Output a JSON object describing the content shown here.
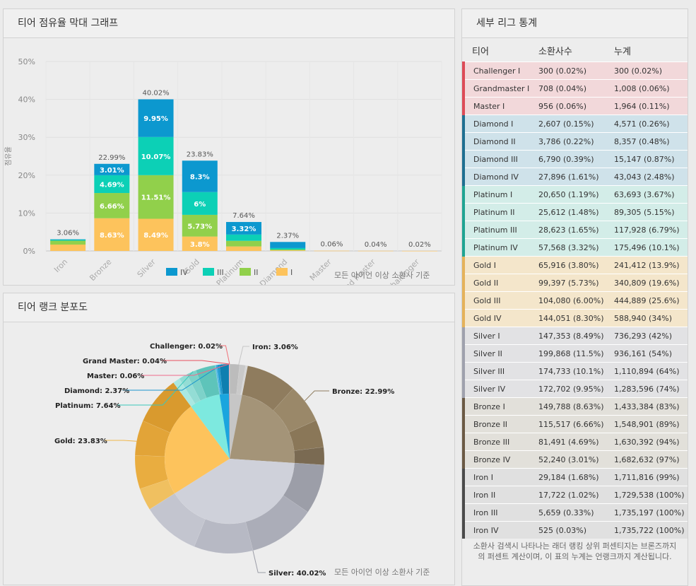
{
  "bar_panel": {
    "title": "티어 점유율 막대 그래프",
    "note": "모든 아이언 이상 소환사 기준"
  },
  "pie_panel": {
    "title": "티어 랭크 분포도",
    "note": "모든 아이언 이상 소환사 기준"
  },
  "stats_panel": {
    "title": "세부 리그 통계",
    "headers": [
      "티어",
      "소환사수",
      "누계"
    ],
    "footer": "소환사 검색시 나타나는 래더 랭킹 상위 퍼센티지는 브론즈까지의 퍼센트 계산이며, 이 표의 누계는 언랭크까지 계산됩니다.",
    "rows": [
      {
        "tier": "Challenger I",
        "count": "300 (0.02%)",
        "cum": "300 (0.02%)",
        "group": "challenger"
      },
      {
        "tier": "Grandmaster I",
        "count": "708 (0.04%)",
        "cum": "1,008 (0.06%)",
        "group": "challenger"
      },
      {
        "tier": "Master I",
        "count": "956 (0.06%)",
        "cum": "1,964 (0.11%)",
        "group": "challenger"
      },
      {
        "tier": "Diamond I",
        "count": "2,607 (0.15%)",
        "cum": "4,571 (0.26%)",
        "group": "diamond"
      },
      {
        "tier": "Diamond II",
        "count": "3,786 (0.22%)",
        "cum": "8,357 (0.48%)",
        "group": "diamond"
      },
      {
        "tier": "Diamond III",
        "count": "6,790 (0.39%)",
        "cum": "15,147 (0.87%)",
        "group": "diamond"
      },
      {
        "tier": "Diamond IV",
        "count": "27,896 (1.61%)",
        "cum": "43,043 (2.48%)",
        "group": "diamond"
      },
      {
        "tier": "Platinum I",
        "count": "20,650 (1.19%)",
        "cum": "63,693 (3.67%)",
        "group": "platinum"
      },
      {
        "tier": "Platinum II",
        "count": "25,612 (1.48%)",
        "cum": "89,305 (5.15%)",
        "group": "platinum"
      },
      {
        "tier": "Platinum III",
        "count": "28,623 (1.65%)",
        "cum": "117,928 (6.79%)",
        "group": "platinum"
      },
      {
        "tier": "Platinum IV",
        "count": "57,568 (3.32%)",
        "cum": "175,496 (10.1%)",
        "group": "platinum"
      },
      {
        "tier": "Gold I",
        "count": "65,916 (3.80%)",
        "cum": "241,412 (13.9%)",
        "group": "gold"
      },
      {
        "tier": "Gold II",
        "count": "99,397 (5.73%)",
        "cum": "340,809 (19.6%)",
        "group": "gold"
      },
      {
        "tier": "Gold III",
        "count": "104,080 (6.00%)",
        "cum": "444,889 (25.6%)",
        "group": "gold"
      },
      {
        "tier": "Gold IV",
        "count": "144,051 (8.30%)",
        "cum": "588,940 (34%)",
        "group": "gold"
      },
      {
        "tier": "Silver I",
        "count": "147,353 (8.49%)",
        "cum": "736,293 (42%)",
        "group": "silver"
      },
      {
        "tier": "Silver II",
        "count": "199,868 (11.5%)",
        "cum": "936,161 (54%)",
        "group": "silver"
      },
      {
        "tier": "Silver III",
        "count": "174,733 (10.1%)",
        "cum": "1,110,894 (64%)",
        "group": "silver"
      },
      {
        "tier": "Silver IV",
        "count": "172,702 (9.95%)",
        "cum": "1,283,596 (74%)",
        "group": "silver"
      },
      {
        "tier": "Bronze I",
        "count": "149,788 (8.63%)",
        "cum": "1,433,384 (83%)",
        "group": "bronze"
      },
      {
        "tier": "Bronze II",
        "count": "115,517 (6.66%)",
        "cum": "1,548,901 (89%)",
        "group": "bronze"
      },
      {
        "tier": "Bronze III",
        "count": "81,491 (4.69%)",
        "cum": "1,630,392 (94%)",
        "group": "bronze"
      },
      {
        "tier": "Bronze IV",
        "count": "52,240 (3.01%)",
        "cum": "1,682,632 (97%)",
        "group": "bronze"
      },
      {
        "tier": "Iron I",
        "count": "29,184 (1.68%)",
        "cum": "1,711,816 (99%)",
        "group": "iron"
      },
      {
        "tier": "Iron II",
        "count": "17,722 (1.02%)",
        "cum": "1,729,538 (100%)",
        "group": "iron"
      },
      {
        "tier": "Iron III",
        "count": "5,659 (0.33%)",
        "cum": "1,735,197 (100%)",
        "group": "iron"
      },
      {
        "tier": "Iron IV",
        "count": "525 (0.03%)",
        "cum": "1,735,722 (100%)",
        "group": "iron"
      }
    ]
  },
  "group_colors": {
    "challenger": {
      "bg": "#f2d8da",
      "bar": "#dd4b57"
    },
    "diamond": {
      "bg": "#cfe2ea",
      "bar": "#1f6f91"
    },
    "platinum": {
      "bg": "#d3ede8",
      "bar": "#1fa492"
    },
    "gold": {
      "bg": "#f4e6cb",
      "bar": "#e5b25a"
    },
    "silver": {
      "bg": "#e2e2e4",
      "bar": "#9fa1ad"
    },
    "bronze": {
      "bg": "#e2e0da",
      "bar": "#6b5a44"
    },
    "iron": {
      "bg": "#e0e0e0",
      "bar": "#4a4a4a"
    }
  },
  "chart_data": [
    {
      "type": "bar",
      "stacked": true,
      "ylabel": "점유율",
      "ylim": [
        0,
        50
      ],
      "yticks": [
        "0%",
        "10%",
        "20%",
        "30%",
        "40%",
        "50%"
      ],
      "categories": [
        "Iron",
        "Bronze",
        "Silver",
        "Gold",
        "Platinum",
        "Diamond",
        "Master",
        "Grand Master",
        "Challenger"
      ],
      "totals": [
        "3.06%",
        "22.99%",
        "40.02%",
        "23.83%",
        "7.64%",
        "2.37%",
        "0.06%",
        "0.04%",
        "0.02%"
      ],
      "series": [
        {
          "name": "I",
          "color": "#fdc35c",
          "values": [
            1.68,
            8.63,
            8.49,
            3.8,
            1.19,
            0.15,
            0.06,
            0.04,
            0.02
          ],
          "labels": [
            "",
            "8.63%",
            "8.49%",
            "3.8%",
            "",
            "",
            "",
            "",
            ""
          ]
        },
        {
          "name": "II",
          "color": "#91d04b",
          "values": [
            1.02,
            6.66,
            11.51,
            5.73,
            1.48,
            0.22,
            0,
            0,
            0
          ],
          "labels": [
            "",
            "6.66%",
            "11.51%",
            "5.73%",
            "",
            "",
            "",
            "",
            ""
          ]
        },
        {
          "name": "III",
          "color": "#0cd0b6",
          "values": [
            0.33,
            4.69,
            10.07,
            6.0,
            1.65,
            0.39,
            0,
            0,
            0
          ],
          "labels": [
            "",
            "4.69%",
            "10.07%",
            "6%",
            "",
            "",
            "",
            "",
            ""
          ]
        },
        {
          "name": "IV",
          "color": "#0c98cf",
          "values": [
            0.03,
            3.01,
            9.95,
            8.3,
            3.32,
            1.61,
            0,
            0,
            0
          ],
          "labels": [
            "",
            "3.01%",
            "9.95%",
            "8.3%",
            "3.32%",
            "",
            "",
            "",
            ""
          ]
        }
      ],
      "legend_order": [
        "IV",
        "III",
        "II",
        "I"
      ],
      "legend_position": "bottom"
    },
    {
      "type": "pie",
      "slices": [
        {
          "name": "Iron",
          "label": "Iron: 3.06%",
          "value": 3.06,
          "color": "#c6c6c6",
          "sub": [
            1.68,
            1.02,
            0.33,
            0.03
          ],
          "sub_colors": [
            "#bcbcbc",
            "#c9c9c9",
            "#d6d6d6",
            "#e3e3e3"
          ]
        },
        {
          "name": "Bronze",
          "label": "Bronze: 22.99%",
          "value": 22.99,
          "color": "#a49478",
          "sub": [
            8.63,
            6.66,
            4.69,
            3.01
          ],
          "sub_colors": [
            "#8f7c5e",
            "#9a8869",
            "#8a7758",
            "#7a6a52"
          ]
        },
        {
          "name": "Silver",
          "label": "Silver: 40.02%",
          "value": 40.02,
          "color": "#cfd1da",
          "sub": [
            8.49,
            11.51,
            10.07,
            9.95
          ],
          "sub_colors": [
            "#9c9ea8",
            "#abadb8",
            "#b7b9c4",
            "#c3c5cf"
          ]
        },
        {
          "name": "Gold",
          "label": "Gold: 23.83%",
          "value": 23.83,
          "color": "#fdc35c",
          "sub": [
            3.8,
            5.73,
            6.0,
            8.3
          ],
          "sub_colors": [
            "#f0c060",
            "#e9ad40",
            "#e2a438",
            "#d99a2e"
          ]
        },
        {
          "name": "Platinum",
          "label": "Platinum: 7.64%",
          "value": 7.64,
          "color": "#7de9df",
          "sub": [
            1.19,
            1.48,
            1.65,
            3.32
          ],
          "sub_colors": [
            "#a9e8e1",
            "#93ddd5",
            "#7dd2c9",
            "#5ec4ba"
          ]
        },
        {
          "name": "Diamond",
          "label": "Diamond: 2.37%",
          "value": 2.37,
          "color": "#1aa5de",
          "sub": [
            0.15,
            0.22,
            0.39,
            1.61
          ],
          "sub_colors": [
            "#5dbde4",
            "#3aaede",
            "#1c9ad0",
            "#0f7fb0"
          ]
        },
        {
          "name": "Master",
          "label": "Master: 0.06%",
          "value": 0.06,
          "color": "#f47a9a",
          "sub": [
            0.06
          ],
          "sub_colors": [
            "#ef8fa8"
          ]
        },
        {
          "name": "Grand Master",
          "label": "Grand Master: 0.04%",
          "value": 0.04,
          "color": "#ef5f72",
          "sub": [
            0.04
          ],
          "sub_colors": [
            "#e8707f"
          ]
        },
        {
          "name": "Challenger",
          "label": "Challenger: 0.02%",
          "value": 0.02,
          "color": "#f07f86",
          "sub": [
            0.02
          ],
          "sub_colors": [
            "#f08f95"
          ]
        }
      ]
    }
  ]
}
